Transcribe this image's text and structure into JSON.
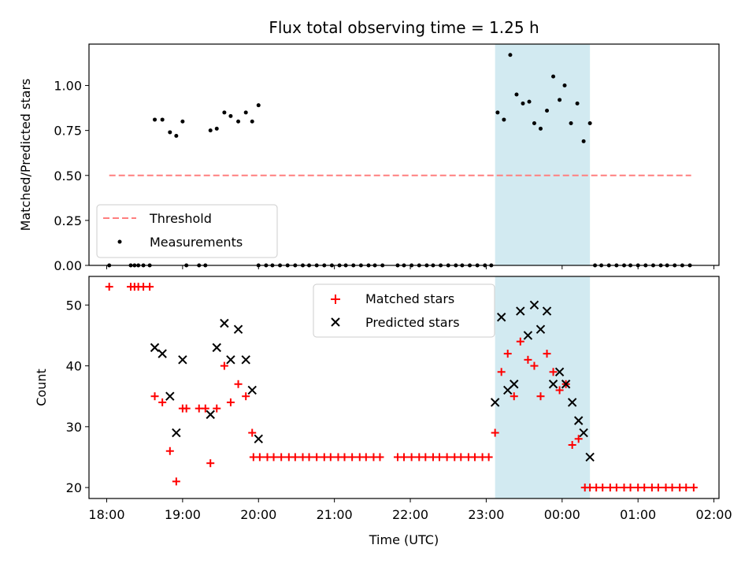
{
  "chart_data": [
    {
      "type": "scatter",
      "title": "Flux total observing time = 1.25 h",
      "xlabel": "",
      "ylabel": "Matched/Predicted stars",
      "xlim": [
        "17:46",
        "02:04"
      ],
      "ylim": [
        0,
        1.23
      ],
      "grid": false,
      "legend": {
        "placement": "lower-left",
        "entries": [
          "Threshold",
          "Measurements"
        ]
      },
      "x_ticks": [
        "18:00",
        "19:00",
        "20:00",
        "21:00",
        "22:00",
        "23:00",
        "00:00",
        "01:00",
        "02:00"
      ],
      "y_ticks": [
        "0.00",
        "0.25",
        "0.50",
        "0.75",
        "1.00"
      ],
      "y_tick_values": [
        0,
        0.25,
        0.5,
        0.75,
        1.0
      ],
      "highlight_band": {
        "x_start": "23:07",
        "x_end": "00:22",
        "color": "#add8e6"
      },
      "series": [
        {
          "name": "Threshold",
          "kind": "dashed-line",
          "color": "#ff7f7f",
          "points": [
            [
              "18:02",
              0.5
            ],
            [
              "01:42",
              0.5
            ]
          ]
        },
        {
          "name": "Measurements",
          "kind": "points",
          "color": "#000000",
          "points": [
            [
              "18:02",
              0.0
            ],
            [
              "18:19",
              0.0
            ],
            [
              "18:22",
              0.0
            ],
            [
              "18:25",
              0.0
            ],
            [
              "18:29",
              0.0
            ],
            [
              "18:34",
              0.0
            ],
            [
              "18:38",
              0.81
            ],
            [
              "18:44",
              0.81
            ],
            [
              "18:50",
              0.74
            ],
            [
              "18:55",
              0.72
            ],
            [
              "19:00",
              0.8
            ],
            [
              "19:03",
              0.0
            ],
            [
              "19:13",
              0.0
            ],
            [
              "19:18",
              0.0
            ],
            [
              "19:22",
              0.75
            ],
            [
              "19:27",
              0.76
            ],
            [
              "19:33",
              0.85
            ],
            [
              "19:38",
              0.83
            ],
            [
              "19:44",
              0.8
            ],
            [
              "19:50",
              0.85
            ],
            [
              "19:55",
              0.8
            ],
            [
              "20:00",
              0.89
            ],
            [
              "20:00",
              0.0
            ],
            [
              "20:06",
              0.0
            ],
            [
              "20:11",
              0.0
            ],
            [
              "20:17",
              0.0
            ],
            [
              "20:23",
              0.0
            ],
            [
              "20:29",
              0.0
            ],
            [
              "20:35",
              0.0
            ],
            [
              "20:40",
              0.0
            ],
            [
              "20:46",
              0.0
            ],
            [
              "20:52",
              0.0
            ],
            [
              "20:58",
              0.0
            ],
            [
              "21:04",
              0.0
            ],
            [
              "21:09",
              0.0
            ],
            [
              "21:15",
              0.0
            ],
            [
              "21:21",
              0.0
            ],
            [
              "21:27",
              0.0
            ],
            [
              "21:32",
              0.0
            ],
            [
              "21:38",
              0.0
            ],
            [
              "21:50",
              0.0
            ],
            [
              "21:55",
              0.0
            ],
            [
              "22:01",
              0.0
            ],
            [
              "22:07",
              0.0
            ],
            [
              "22:13",
              0.0
            ],
            [
              "22:18",
              0.0
            ],
            [
              "22:24",
              0.0
            ],
            [
              "22:30",
              0.0
            ],
            [
              "22:36",
              0.0
            ],
            [
              "22:41",
              0.0
            ],
            [
              "22:47",
              0.0
            ],
            [
              "22:53",
              0.0
            ],
            [
              "22:59",
              0.0
            ],
            [
              "23:04",
              0.0
            ],
            [
              "23:09",
              0.85
            ],
            [
              "23:14",
              0.81
            ],
            [
              "23:19",
              1.17
            ],
            [
              "23:24",
              0.95
            ],
            [
              "23:29",
              0.9
            ],
            [
              "23:34",
              0.91
            ],
            [
              "23:38",
              0.79
            ],
            [
              "23:43",
              0.76
            ],
            [
              "23:48",
              0.86
            ],
            [
              "23:53",
              1.05
            ],
            [
              "23:58",
              0.92
            ],
            [
              "00:02",
              1.0
            ],
            [
              "00:07",
              0.79
            ],
            [
              "00:12",
              0.9
            ],
            [
              "00:17",
              0.69
            ],
            [
              "00:22",
              0.79
            ],
            [
              "00:26",
              0.0
            ],
            [
              "00:31",
              0.0
            ],
            [
              "00:37",
              0.0
            ],
            [
              "00:43",
              0.0
            ],
            [
              "00:49",
              0.0
            ],
            [
              "00:54",
              0.0
            ],
            [
              "01:00",
              0.0
            ],
            [
              "01:06",
              0.0
            ],
            [
              "01:12",
              0.0
            ],
            [
              "01:18",
              0.0
            ],
            [
              "01:23",
              0.0
            ],
            [
              "01:29",
              0.0
            ],
            [
              "01:35",
              0.0
            ],
            [
              "01:41",
              0.0
            ]
          ]
        }
      ]
    },
    {
      "type": "scatter",
      "title": "",
      "xlabel": "Time (UTC)",
      "ylabel": "Count",
      "xlim": [
        "17:46",
        "02:04"
      ],
      "ylim": [
        18.2,
        54.7
      ],
      "grid": false,
      "legend": {
        "placement": "top-center",
        "entries": [
          "Matched stars",
          "Predicted stars"
        ]
      },
      "x_ticks": [
        "18:00",
        "19:00",
        "20:00",
        "21:00",
        "22:00",
        "23:00",
        "00:00",
        "01:00",
        "02:00"
      ],
      "y_ticks": [
        "20",
        "30",
        "40",
        "50"
      ],
      "y_tick_values": [
        20,
        30,
        40,
        50
      ],
      "highlight_band": {
        "x_start": "23:07",
        "x_end": "00:22",
        "color": "#add8e6"
      },
      "series": [
        {
          "name": "Matched stars",
          "kind": "plus",
          "color": "#ff0000",
          "points": [
            [
              "18:02",
              53
            ],
            [
              "18:19",
              53
            ],
            [
              "18:22",
              53
            ],
            [
              "18:25",
              53
            ],
            [
              "18:29",
              53
            ],
            [
              "18:34",
              53
            ],
            [
              "18:38",
              35
            ],
            [
              "18:44",
              34
            ],
            [
              "18:50",
              26
            ],
            [
              "18:55",
              21
            ],
            [
              "19:00",
              33
            ],
            [
              "19:03",
              33
            ],
            [
              "19:13",
              33
            ],
            [
              "19:18",
              33
            ],
            [
              "19:22",
              24
            ],
            [
              "19:27",
              33
            ],
            [
              "19:33",
              40
            ],
            [
              "19:38",
              34
            ],
            [
              "19:44",
              37
            ],
            [
              "19:50",
              35
            ],
            [
              "19:55",
              29
            ],
            [
              "19:56",
              25
            ],
            [
              "20:01",
              25
            ],
            [
              "20:07",
              25
            ],
            [
              "20:12",
              25
            ],
            [
              "20:18",
              25
            ],
            [
              "20:24",
              25
            ],
            [
              "20:29",
              25
            ],
            [
              "20:35",
              25
            ],
            [
              "20:40",
              25
            ],
            [
              "20:46",
              25
            ],
            [
              "20:52",
              25
            ],
            [
              "20:57",
              25
            ],
            [
              "21:03",
              25
            ],
            [
              "21:08",
              25
            ],
            [
              "21:14",
              25
            ],
            [
              "21:20",
              25
            ],
            [
              "21:25",
              25
            ],
            [
              "21:31",
              25
            ],
            [
              "21:36",
              25
            ],
            [
              "21:50",
              25
            ],
            [
              "21:55",
              25
            ],
            [
              "22:01",
              25
            ],
            [
              "22:07",
              25
            ],
            [
              "22:12",
              25
            ],
            [
              "22:18",
              25
            ],
            [
              "22:23",
              25
            ],
            [
              "22:29",
              25
            ],
            [
              "22:35",
              25
            ],
            [
              "22:40",
              25
            ],
            [
              "22:46",
              25
            ],
            [
              "22:51",
              25
            ],
            [
              "22:57",
              25
            ],
            [
              "23:02",
              25
            ],
            [
              "23:07",
              29
            ],
            [
              "23:12",
              39
            ],
            [
              "23:17",
              42
            ],
            [
              "23:22",
              35
            ],
            [
              "23:27",
              44
            ],
            [
              "23:33",
              41
            ],
            [
              "23:38",
              40
            ],
            [
              "23:43",
              35
            ],
            [
              "23:48",
              42
            ],
            [
              "23:53",
              39
            ],
            [
              "23:58",
              36
            ],
            [
              "00:03",
              37
            ],
            [
              "00:08",
              27
            ],
            [
              "00:13",
              28
            ],
            [
              "00:18",
              20
            ],
            [
              "00:22",
              20
            ],
            [
              "00:27",
              20
            ],
            [
              "00:32",
              20
            ],
            [
              "00:38",
              20
            ],
            [
              "00:43",
              20
            ],
            [
              "00:49",
              20
            ],
            [
              "00:54",
              20
            ],
            [
              "01:00",
              20
            ],
            [
              "01:05",
              20
            ],
            [
              "01:11",
              20
            ],
            [
              "01:16",
              20
            ],
            [
              "01:22",
              20
            ],
            [
              "01:27",
              20
            ],
            [
              "01:33",
              20
            ],
            [
              "01:38",
              20
            ],
            [
              "01:44",
              20
            ]
          ]
        },
        {
          "name": "Predicted stars",
          "kind": "x",
          "color": "#000000",
          "points": [
            [
              "18:38",
              43
            ],
            [
              "18:44",
              42
            ],
            [
              "18:50",
              35
            ],
            [
              "18:55",
              29
            ],
            [
              "19:00",
              41
            ],
            [
              "19:22",
              32
            ],
            [
              "19:27",
              43
            ],
            [
              "19:33",
              47
            ],
            [
              "19:38",
              41
            ],
            [
              "19:44",
              46
            ],
            [
              "19:50",
              41
            ],
            [
              "19:55",
              36
            ],
            [
              "20:00",
              28
            ],
            [
              "23:07",
              34
            ],
            [
              "23:12",
              48
            ],
            [
              "23:17",
              36
            ],
            [
              "23:22",
              37
            ],
            [
              "23:27",
              49
            ],
            [
              "23:33",
              45
            ],
            [
              "23:38",
              50
            ],
            [
              "23:43",
              46
            ],
            [
              "23:48",
              49
            ],
            [
              "23:53",
              37
            ],
            [
              "23:58",
              39
            ],
            [
              "00:03",
              37
            ],
            [
              "00:08",
              34
            ],
            [
              "00:13",
              31
            ],
            [
              "00:17",
              29
            ],
            [
              "00:22",
              25
            ]
          ]
        }
      ]
    }
  ]
}
